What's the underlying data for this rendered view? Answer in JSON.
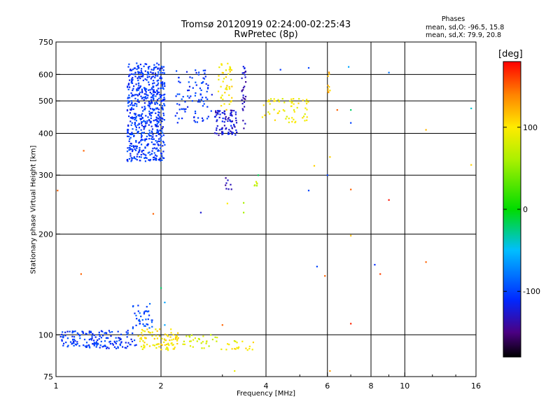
{
  "header": {
    "title_line1": "Tromsø 20120919 02:24:00-02:25:43",
    "title_line2": "RwPretec (8p)"
  },
  "stats": {
    "heading": "Phases",
    "line_o": "mean, sd,O:  -96.5, 15.8",
    "line_x": "mean, sd,X:  79.9, 20.8"
  },
  "colorbar": {
    "unit_label": "[deg]",
    "range": [
      -180,
      180
    ],
    "tick_labels": [
      "100",
      "0",
      "-100"
    ],
    "tick_values": [
      100,
      0,
      -100
    ]
  },
  "chart_data": {
    "type": "scatter",
    "title": "Tromsø 20120919 02:24:00-02:25:43",
    "subtitle": "RwPretec (8p)",
    "xlabel": "Frequency [MHz]",
    "ylabel": "Stationary phase Virtual Height [km]",
    "xscale": "log",
    "yscale": "log",
    "xlim": [
      1,
      16
    ],
    "ylim": [
      75,
      750
    ],
    "xticks": [
      1,
      2,
      4,
      6,
      8,
      10,
      16
    ],
    "yticks": [
      75,
      100,
      200,
      300,
      400,
      500,
      600,
      750
    ],
    "grid_x": [
      2,
      4,
      6,
      8,
      10
    ],
    "grid_y": [
      100,
      200,
      300,
      400,
      500,
      600
    ],
    "color_variable": "phase [deg]",
    "clusters": [
      {
        "x": [
          1.6,
          2.05
        ],
        "y": [
          330,
          650
        ],
        "phase": -105,
        "count": 620
      },
      {
        "x": [
          2.2,
          2.8
        ],
        "y": [
          430,
          620
        ],
        "phase": -105,
        "count": 90
      },
      {
        "x": [
          2.85,
          3.3
        ],
        "y": [
          395,
          470
        ],
        "phase": -125,
        "count": 90
      },
      {
        "x": [
          2.9,
          3.2
        ],
        "y": [
          470,
          650
        ],
        "phase": 100,
        "count": 45
      },
      {
        "x": [
          3.4,
          3.5
        ],
        "y": [
          400,
          640
        ],
        "phase": -130,
        "count": 30
      },
      {
        "x": [
          3.9,
          5.3
        ],
        "y": [
          430,
          510
        ],
        "phase": 95,
        "count": 60
      },
      {
        "x": [
          1.03,
          1.7
        ],
        "y": [
          91,
          103
        ],
        "phase": -105,
        "count": 160
      },
      {
        "x": [
          1.72,
          2.25
        ],
        "y": [
          90,
          104
        ],
        "phase": 100,
        "count": 90
      },
      {
        "x": [
          2.3,
          2.9
        ],
        "y": [
          91,
          100
        ],
        "phase": 80,
        "count": 30
      },
      {
        "x": [
          2.95,
          3.7
        ],
        "y": [
          90,
          96
        ],
        "phase": 95,
        "count": 20
      },
      {
        "x": [
          1.65,
          1.9
        ],
        "y": [
          103,
          125
        ],
        "phase": -95,
        "count": 40
      },
      {
        "x": [
          3.05,
          3.2
        ],
        "y": [
          270,
          295
        ],
        "phase": -130,
        "count": 8
      },
      {
        "x": [
          3.7,
          3.8
        ],
        "y": [
          278,
          288
        ],
        "phase": 70,
        "count": 6
      },
      {
        "x": [
          6.0,
          6.1
        ],
        "y": [
          530,
          610
        ],
        "phase": 120,
        "count": 10
      }
    ],
    "points": [
      {
        "x": 1.2,
        "y": 355,
        "phase": 150
      },
      {
        "x": 1.18,
        "y": 152,
        "phase": 150
      },
      {
        "x": 1.01,
        "y": 270,
        "phase": 150
      },
      {
        "x": 1.9,
        "y": 230,
        "phase": 150
      },
      {
        "x": 2.6,
        "y": 232,
        "phase": -125
      },
      {
        "x": 3.1,
        "y": 247,
        "phase": 100
      },
      {
        "x": 3.45,
        "y": 232,
        "phase": 60
      },
      {
        "x": 3.45,
        "y": 248,
        "phase": 60
      },
      {
        "x": 3.0,
        "y": 107,
        "phase": 150
      },
      {
        "x": 3.25,
        "y": 78,
        "phase": 90
      },
      {
        "x": 3.8,
        "y": 300,
        "phase": -15
      },
      {
        "x": 4.4,
        "y": 620,
        "phase": -105
      },
      {
        "x": 5.3,
        "y": 628,
        "phase": -100
      },
      {
        "x": 5.3,
        "y": 270,
        "phase": -100
      },
      {
        "x": 5.5,
        "y": 320,
        "phase": 110
      },
      {
        "x": 5.6,
        "y": 160,
        "phase": -100
      },
      {
        "x": 5.9,
        "y": 150,
        "phase": 150
      },
      {
        "x": 6.0,
        "y": 300,
        "phase": -100
      },
      {
        "x": 6.1,
        "y": 340,
        "phase": 110
      },
      {
        "x": 6.1,
        "y": 78,
        "phase": 130
      },
      {
        "x": 6.4,
        "y": 470,
        "phase": 150
      },
      {
        "x": 6.9,
        "y": 632,
        "phase": -60
      },
      {
        "x": 7.0,
        "y": 470,
        "phase": -20
      },
      {
        "x": 7.0,
        "y": 430,
        "phase": -100
      },
      {
        "x": 7.0,
        "y": 108,
        "phase": 170
      },
      {
        "x": 7.0,
        "y": 198,
        "phase": 120
      },
      {
        "x": 7.0,
        "y": 272,
        "phase": 150
      },
      {
        "x": 8.2,
        "y": 162,
        "phase": -110
      },
      {
        "x": 8.5,
        "y": 152,
        "phase": 160
      },
      {
        "x": 9.0,
        "y": 608,
        "phase": -80
      },
      {
        "x": 9.0,
        "y": 253,
        "phase": 175
      },
      {
        "x": 11.5,
        "y": 165,
        "phase": 150
      },
      {
        "x": 11.5,
        "y": 410,
        "phase": 120
      },
      {
        "x": 15.5,
        "y": 475,
        "phase": -40
      },
      {
        "x": 15.5,
        "y": 322,
        "phase": 110
      },
      {
        "x": 2.0,
        "y": 138,
        "phase": -20
      },
      {
        "x": 2.05,
        "y": 125,
        "phase": -60
      },
      {
        "x": 2.05,
        "y": 107,
        "phase": -60
      }
    ]
  },
  "colors": {
    "frame": "#000000",
    "background": "#ffffff"
  }
}
